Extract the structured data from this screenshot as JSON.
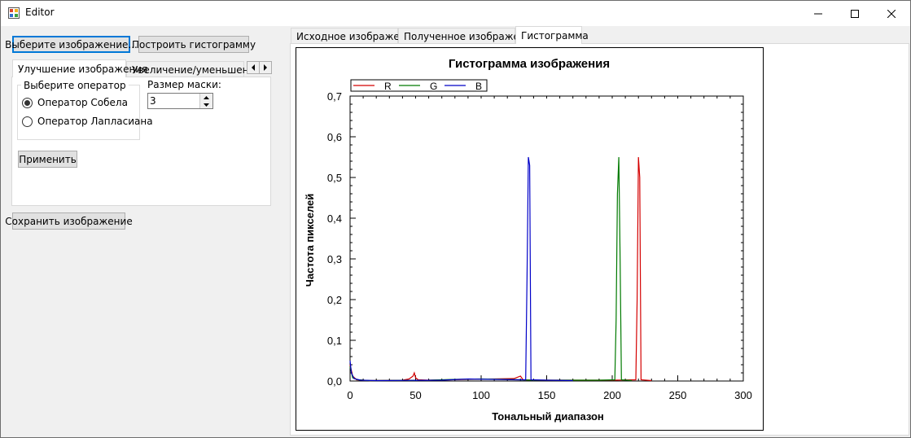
{
  "window": {
    "title": "Editor"
  },
  "toolbar": {
    "choose_image": "Выберите изображение...",
    "build_histogram": "Построить гистограмму",
    "save_image": "Сохранить изображение"
  },
  "left_tabs": [
    {
      "label": "Улучшение изображения",
      "active": true
    },
    {
      "label": "Увеличение/уменьшение",
      "active": false
    }
  ],
  "operator_group": {
    "label": "Выберите оператор",
    "options": [
      {
        "label": "Оператор Собела",
        "checked": true
      },
      {
        "label": "Оператор Лапласиана",
        "checked": false
      }
    ]
  },
  "mask": {
    "label": "Размер маски:",
    "value": "3"
  },
  "apply_button": "Применить",
  "right_tabs": [
    {
      "label": "Исходное изображение",
      "active": false
    },
    {
      "label": "Полученное изображение",
      "active": false
    },
    {
      "label": "Гистограмма",
      "active": true
    }
  ],
  "chart_data": {
    "type": "line",
    "title": "Гистограмма изображения",
    "xlabel": "Тональный диапазон",
    "ylabel": "Частота пикселей",
    "xlim": [
      0,
      300
    ],
    "ylim": [
      0,
      0.7
    ],
    "xticks": [
      0,
      50,
      100,
      150,
      200,
      250,
      300
    ],
    "yticks": [
      "0,0",
      "0,1",
      "0,2",
      "0,3",
      "0,4",
      "0,5",
      "0,6",
      "0,7"
    ],
    "legend_position": "top-left",
    "series": [
      {
        "name": "R",
        "color": "#d40000",
        "points": [
          [
            0,
            0.04
          ],
          [
            2,
            0.012
          ],
          [
            5,
            0.003
          ],
          [
            15,
            0.001
          ],
          [
            40,
            0.002
          ],
          [
            45,
            0.005
          ],
          [
            48,
            0.012
          ],
          [
            49,
            0.02
          ],
          [
            50,
            0.008
          ],
          [
            52,
            0.003
          ],
          [
            60,
            0.002
          ],
          [
            90,
            0.004
          ],
          [
            110,
            0.005
          ],
          [
            125,
            0.006
          ],
          [
            130,
            0.012
          ],
          [
            132,
            0.003
          ],
          [
            140,
            0.002
          ],
          [
            180,
            0.002
          ],
          [
            200,
            0.002
          ],
          [
            218,
            0.003
          ],
          [
            219,
            0.2
          ],
          [
            220,
            0.55
          ],
          [
            221,
            0.5
          ],
          [
            222,
            0.003
          ],
          [
            230,
            0.001
          ]
        ]
      },
      {
        "name": "G",
        "color": "#007a00",
        "points": [
          [
            0,
            0.035
          ],
          [
            2,
            0.008
          ],
          [
            6,
            0.003
          ],
          [
            15,
            0.001
          ],
          [
            60,
            0.002
          ],
          [
            80,
            0.004
          ],
          [
            100,
            0.005
          ],
          [
            120,
            0.004
          ],
          [
            140,
            0.002
          ],
          [
            160,
            0.002
          ],
          [
            190,
            0.002
          ],
          [
            202,
            0.003
          ],
          [
            203,
            0.15
          ],
          [
            204,
            0.46
          ],
          [
            205,
            0.55
          ],
          [
            206,
            0.3
          ],
          [
            207,
            0.003
          ],
          [
            215,
            0.001
          ]
        ]
      },
      {
        "name": "B",
        "color": "#0000c8",
        "points": [
          [
            0,
            0.05
          ],
          [
            1,
            0.02
          ],
          [
            3,
            0.006
          ],
          [
            8,
            0.002
          ],
          [
            20,
            0.001
          ],
          [
            70,
            0.002
          ],
          [
            90,
            0.005
          ],
          [
            110,
            0.004
          ],
          [
            128,
            0.003
          ],
          [
            134,
            0.003
          ],
          [
            135,
            0.26
          ],
          [
            136,
            0.55
          ],
          [
            137,
            0.53
          ],
          [
            138,
            0.003
          ],
          [
            150,
            0.002
          ],
          [
            170,
            0.001
          ]
        ]
      }
    ]
  }
}
